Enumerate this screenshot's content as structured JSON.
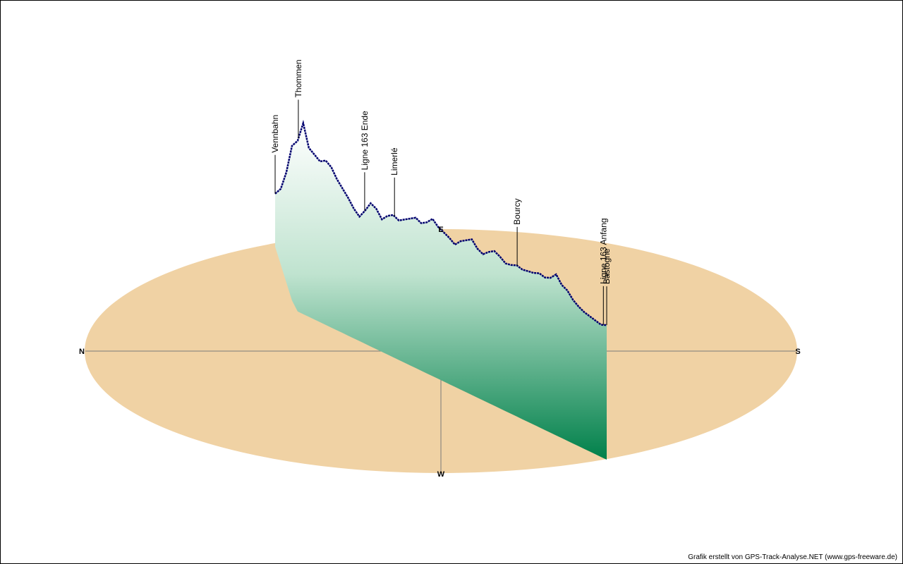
{
  "credit": "Grafik erstellt von GPS-Track-Analyse.NET (www.gps-freeware.de)",
  "compass": {
    "north": "N",
    "south": "S",
    "east": "E",
    "west": "W"
  },
  "colors": {
    "disc": "#f0d2a4",
    "profile_line": "#00006e",
    "fill_top": "#ffffff",
    "fill_bottom": "#00804a",
    "axis": "#7a7a7a",
    "border": "#000000"
  },
  "chart_data": {
    "type": "area",
    "title": "",
    "xlabel": "",
    "ylabel": "",
    "waypoints": [
      {
        "name": "Vennbahn",
        "t": 0.0
      },
      {
        "name": "Thommen",
        "t": 0.07
      },
      {
        "name": "Ligne 163 Ende",
        "t": 0.27
      },
      {
        "name": "Limerlé",
        "t": 0.36
      },
      {
        "name": "Bourcy",
        "t": 0.73
      },
      {
        "name": "Ligne 163 Anfang",
        "t": 0.99
      },
      {
        "name": "Bastogne",
        "t": 1.0
      }
    ],
    "profile": [
      0.3,
      0.34,
      0.45,
      0.62,
      0.85,
      1.0,
      0.82,
      0.78,
      0.74,
      0.76,
      0.72,
      0.64,
      0.58,
      0.52,
      0.45,
      0.4,
      0.46,
      0.53,
      0.5,
      0.43,
      0.47,
      0.49,
      0.46,
      0.48,
      0.5,
      0.52,
      0.49,
      0.51,
      0.55,
      0.5,
      0.47,
      0.44,
      0.4,
      0.44,
      0.46,
      0.48,
      0.42,
      0.39,
      0.42,
      0.44,
      0.41,
      0.37,
      0.37,
      0.38,
      0.36,
      0.36,
      0.36,
      0.37,
      0.35,
      0.36,
      0.4,
      0.33,
      0.3,
      0.24,
      0.2,
      0.17,
      0.15,
      0.13,
      0.11,
      0.12
    ]
  }
}
